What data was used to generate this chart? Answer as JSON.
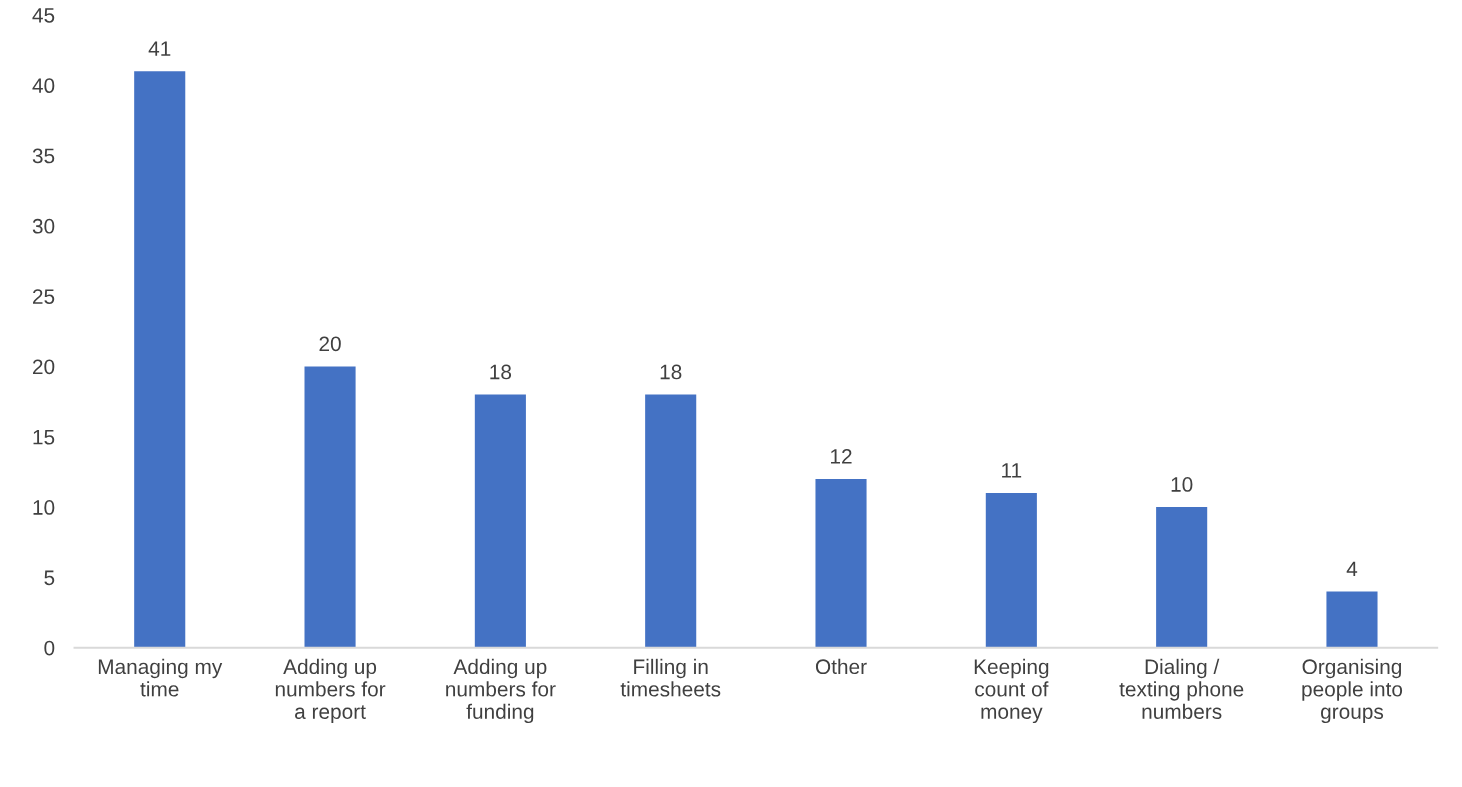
{
  "chart_data": {
    "type": "bar",
    "categories": [
      "Managing my\ntime",
      "Adding up\nnumbers for\na report",
      "Adding up\nnumbers for\nfunding",
      "Filling in\ntimesheets",
      "Other",
      "Keeping\ncount of\nmoney",
      "Dialing /\ntexting phone\nnumbers",
      "Organising\npeople into\ngroups"
    ],
    "values": [
      41,
      20,
      18,
      18,
      12,
      11,
      10,
      4
    ],
    "color": "#4472c4",
    "ylim": [
      0,
      45
    ],
    "yticks": [
      0,
      5,
      10,
      15,
      20,
      25,
      30,
      35,
      40,
      45
    ],
    "grid": false,
    "data_labels": true
  }
}
